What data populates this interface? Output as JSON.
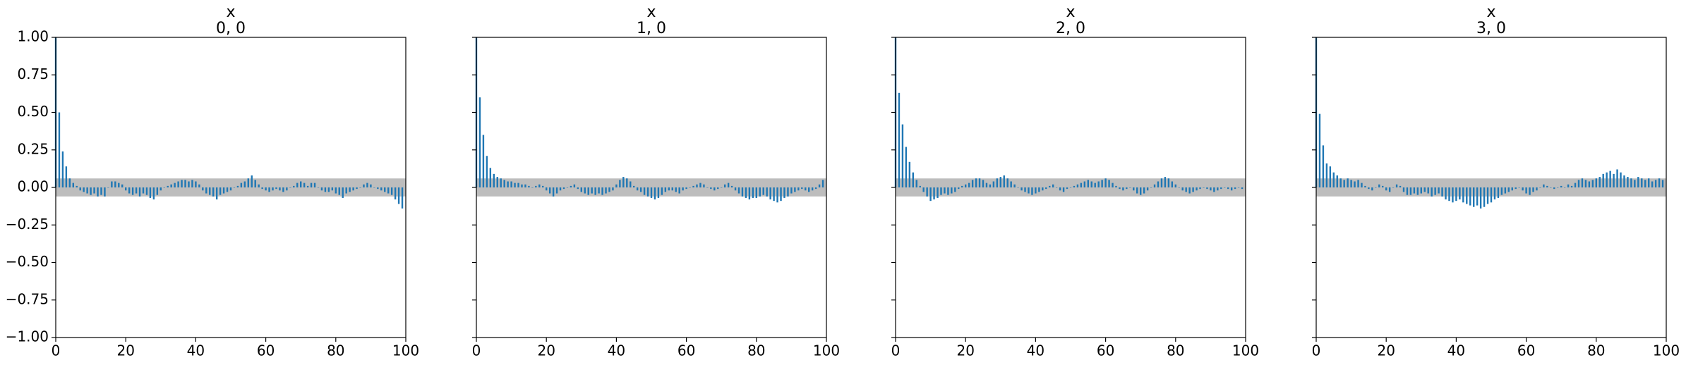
{
  "chart_data": [
    {
      "type": "bar",
      "title": "x",
      "subtitle": "0, 0",
      "color": "#1f77b4",
      "band": [
        -0.06,
        0.06
      ],
      "band_color": "#bdbdbd",
      "show_ytick_labels": true,
      "xlim": [
        0,
        100
      ],
      "xticks": [
        0,
        20,
        40,
        60,
        80,
        100
      ],
      "ylim": [
        -1,
        1
      ],
      "yticks": [
        {
          "value": -1,
          "label": "−1.00"
        },
        {
          "value": -0.75,
          "label": "−0.75"
        },
        {
          "value": -0.5,
          "label": "−0.50"
        },
        {
          "value": -0.25,
          "label": "−0.25"
        },
        {
          "value": 0,
          "label": "0.00"
        },
        {
          "value": 0.25,
          "label": "0.25"
        },
        {
          "value": 0.5,
          "label": "0.50"
        },
        {
          "value": 0.75,
          "label": "0.75"
        },
        {
          "value": 1,
          "label": "1.00"
        }
      ],
      "x": [
        0,
        1,
        2,
        3,
        4,
        5,
        6,
        7,
        8,
        9,
        10,
        11,
        12,
        13,
        14,
        15,
        16,
        17,
        18,
        19,
        20,
        21,
        22,
        23,
        24,
        25,
        26,
        27,
        28,
        29,
        30,
        31,
        32,
        33,
        34,
        35,
        36,
        37,
        38,
        39,
        40,
        41,
        42,
        43,
        44,
        45,
        46,
        47,
        48,
        49,
        50,
        51,
        52,
        53,
        54,
        55,
        56,
        57,
        58,
        59,
        60,
        61,
        62,
        63,
        64,
        65,
        66,
        67,
        68,
        69,
        70,
        71,
        72,
        73,
        74,
        75,
        76,
        77,
        78,
        79,
        80,
        81,
        82,
        83,
        84,
        85,
        86,
        87,
        88,
        89,
        90,
        91,
        92,
        93,
        94,
        95,
        96,
        97,
        98,
        99
      ],
      "values": [
        1,
        0.5,
        0.24,
        0.14,
        0.06,
        0.03,
        0.01,
        -0.02,
        -0.03,
        -0.04,
        -0.05,
        -0.04,
        -0.06,
        -0.05,
        -0.06,
        0.0,
        0.04,
        0.04,
        0.03,
        0.02,
        -0.02,
        -0.04,
        -0.05,
        -0.04,
        -0.06,
        -0.04,
        -0.05,
        -0.07,
        -0.08,
        -0.05,
        -0.02,
        0.0,
        0.01,
        0.02,
        0.03,
        0.04,
        0.05,
        0.05,
        0.04,
        0.05,
        0.04,
        0.02,
        -0.02,
        -0.04,
        -0.05,
        -0.06,
        -0.08,
        -0.05,
        -0.04,
        -0.03,
        -0.02,
        0.0,
        0.01,
        0.03,
        0.04,
        0.06,
        0.08,
        0.05,
        0.02,
        -0.01,
        -0.02,
        -0.03,
        -0.02,
        -0.01,
        -0.02,
        -0.03,
        -0.02,
        0.0,
        0.01,
        0.03,
        0.04,
        0.03,
        0.01,
        0.03,
        0.03,
        0.0,
        -0.02,
        -0.03,
        -0.03,
        -0.02,
        -0.04,
        -0.05,
        -0.07,
        -0.04,
        -0.03,
        -0.02,
        -0.01,
        0.0,
        0.02,
        0.03,
        0.02,
        0.0,
        -0.01,
        -0.02,
        -0.03,
        -0.04,
        -0.05,
        -0.08,
        -0.11,
        -0.14
      ]
    },
    {
      "type": "bar",
      "title": "x",
      "subtitle": "1, 0",
      "color": "#1f77b4",
      "band": [
        -0.06,
        0.06
      ],
      "band_color": "#bdbdbd",
      "show_ytick_labels": false,
      "xlim": [
        0,
        100
      ],
      "xticks": [
        0,
        20,
        40,
        60,
        80,
        100
      ],
      "ylim": [
        -1,
        1
      ],
      "yticks": [
        -1,
        -0.75,
        -0.5,
        -0.25,
        0,
        0.25,
        0.5,
        0.75,
        1
      ],
      "x": [
        0,
        1,
        2,
        3,
        4,
        5,
        6,
        7,
        8,
        9,
        10,
        11,
        12,
        13,
        14,
        15,
        16,
        17,
        18,
        19,
        20,
        21,
        22,
        23,
        24,
        25,
        26,
        27,
        28,
        29,
        30,
        31,
        32,
        33,
        34,
        35,
        36,
        37,
        38,
        39,
        40,
        41,
        42,
        43,
        44,
        45,
        46,
        47,
        48,
        49,
        50,
        51,
        52,
        53,
        54,
        55,
        56,
        57,
        58,
        59,
        60,
        61,
        62,
        63,
        64,
        65,
        66,
        67,
        68,
        69,
        70,
        71,
        72,
        73,
        74,
        75,
        76,
        77,
        78,
        79,
        80,
        81,
        82,
        83,
        84,
        85,
        86,
        87,
        88,
        89,
        90,
        91,
        92,
        93,
        94,
        95,
        96,
        97,
        98,
        99
      ],
      "values": [
        1,
        0.6,
        0.35,
        0.21,
        0.13,
        0.09,
        0.07,
        0.06,
        0.05,
        0.04,
        0.04,
        0.03,
        0.03,
        0.02,
        0.02,
        0.01,
        0.0,
        0.01,
        0.02,
        0.01,
        -0.02,
        -0.04,
        -0.06,
        -0.04,
        -0.02,
        -0.01,
        0.0,
        0.01,
        0.02,
        -0.01,
        -0.03,
        -0.04,
        -0.05,
        -0.04,
        -0.05,
        -0.04,
        -0.05,
        -0.04,
        -0.03,
        -0.02,
        0.02,
        0.05,
        0.07,
        0.06,
        0.04,
        0.01,
        -0.02,
        -0.03,
        -0.05,
        -0.06,
        -0.07,
        -0.08,
        -0.07,
        -0.05,
        -0.03,
        -0.02,
        -0.02,
        -0.03,
        -0.04,
        -0.02,
        -0.01,
        0.0,
        0.01,
        0.02,
        0.03,
        0.02,
        0.0,
        -0.01,
        -0.02,
        -0.01,
        0.0,
        0.02,
        0.03,
        0.01,
        -0.02,
        -0.04,
        -0.06,
        -0.07,
        -0.08,
        -0.07,
        -0.07,
        -0.06,
        -0.05,
        -0.06,
        -0.08,
        -0.09,
        -0.1,
        -0.09,
        -0.07,
        -0.06,
        -0.04,
        -0.03,
        -0.02,
        -0.01,
        -0.02,
        -0.03,
        -0.02,
        -0.01,
        0.02,
        0.05
      ]
    },
    {
      "type": "bar",
      "title": "x",
      "subtitle": "2, 0",
      "color": "#1f77b4",
      "band": [
        -0.06,
        0.06
      ],
      "band_color": "#bdbdbd",
      "show_ytick_labels": false,
      "xlim": [
        0,
        100
      ],
      "xticks": [
        0,
        20,
        40,
        60,
        80,
        100
      ],
      "ylim": [
        -1,
        1
      ],
      "yticks": [
        -1,
        -0.75,
        -0.5,
        -0.25,
        0,
        0.25,
        0.5,
        0.75,
        1
      ],
      "x": [
        0,
        1,
        2,
        3,
        4,
        5,
        6,
        7,
        8,
        9,
        10,
        11,
        12,
        13,
        14,
        15,
        16,
        17,
        18,
        19,
        20,
        21,
        22,
        23,
        24,
        25,
        26,
        27,
        28,
        29,
        30,
        31,
        32,
        33,
        34,
        35,
        36,
        37,
        38,
        39,
        40,
        41,
        42,
        43,
        44,
        45,
        46,
        47,
        48,
        49,
        50,
        51,
        52,
        53,
        54,
        55,
        56,
        57,
        58,
        59,
        60,
        61,
        62,
        63,
        64,
        65,
        66,
        67,
        68,
        69,
        70,
        71,
        72,
        73,
        74,
        75,
        76,
        77,
        78,
        79,
        80,
        81,
        82,
        83,
        84,
        85,
        86,
        87,
        88,
        89,
        90,
        91,
        92,
        93,
        94,
        95,
        96,
        97,
        98,
        99
      ],
      "values": [
        1,
        0.63,
        0.42,
        0.27,
        0.17,
        0.1,
        0.05,
        0.01,
        -0.03,
        -0.06,
        -0.09,
        -0.08,
        -0.07,
        -0.05,
        -0.04,
        -0.05,
        -0.04,
        -0.03,
        -0.01,
        0.01,
        0.02,
        0.03,
        0.05,
        0.06,
        0.06,
        0.05,
        0.03,
        0.02,
        0.04,
        0.06,
        0.07,
        0.08,
        0.06,
        0.04,
        0.02,
        0.0,
        -0.02,
        -0.03,
        -0.04,
        -0.05,
        -0.04,
        -0.03,
        -0.02,
        -0.01,
        0.01,
        0.02,
        0.0,
        -0.02,
        -0.03,
        -0.01,
        0.0,
        0.01,
        0.02,
        0.03,
        0.04,
        0.05,
        0.04,
        0.03,
        0.04,
        0.05,
        0.06,
        0.05,
        0.03,
        0.01,
        -0.01,
        -0.02,
        -0.01,
        0.0,
        -0.02,
        -0.04,
        -0.05,
        -0.04,
        -0.02,
        0.0,
        0.02,
        0.04,
        0.06,
        0.07,
        0.06,
        0.04,
        0.02,
        0.0,
        -0.02,
        -0.03,
        -0.04,
        -0.03,
        -0.02,
        -0.01,
        0.0,
        -0.01,
        -0.02,
        -0.03,
        -0.02,
        -0.01,
        0.0,
        -0.01,
        -0.02,
        -0.01,
        0.0,
        -0.01
      ]
    },
    {
      "type": "bar",
      "title": "x",
      "subtitle": "3, 0",
      "color": "#1f77b4",
      "band": [
        -0.06,
        0.06
      ],
      "band_color": "#bdbdbd",
      "show_ytick_labels": false,
      "xlim": [
        0,
        100
      ],
      "xticks": [
        0,
        20,
        40,
        60,
        80,
        100
      ],
      "ylim": [
        -1,
        1
      ],
      "yticks": [
        -1,
        -0.75,
        -0.5,
        -0.25,
        0,
        0.25,
        0.5,
        0.75,
        1
      ],
      "x": [
        0,
        1,
        2,
        3,
        4,
        5,
        6,
        7,
        8,
        9,
        10,
        11,
        12,
        13,
        14,
        15,
        16,
        17,
        18,
        19,
        20,
        21,
        22,
        23,
        24,
        25,
        26,
        27,
        28,
        29,
        30,
        31,
        32,
        33,
        34,
        35,
        36,
        37,
        38,
        39,
        40,
        41,
        42,
        43,
        44,
        45,
        46,
        47,
        48,
        49,
        50,
        51,
        52,
        53,
        54,
        55,
        56,
        57,
        58,
        59,
        60,
        61,
        62,
        63,
        64,
        65,
        66,
        67,
        68,
        69,
        70,
        71,
        72,
        73,
        74,
        75,
        76,
        77,
        78,
        79,
        80,
        81,
        82,
        83,
        84,
        85,
        86,
        87,
        88,
        89,
        90,
        91,
        92,
        93,
        94,
        95,
        96,
        97,
        98,
        99
      ],
      "values": [
        1,
        0.49,
        0.28,
        0.16,
        0.14,
        0.1,
        0.08,
        0.06,
        0.05,
        0.06,
        0.05,
        0.04,
        0.05,
        0.03,
        0.01,
        -0.01,
        -0.02,
        0.0,
        0.02,
        0.01,
        -0.02,
        -0.03,
        0.0,
        0.02,
        0.01,
        -0.03,
        -0.05,
        -0.05,
        -0.04,
        -0.05,
        -0.04,
        -0.03,
        -0.04,
        -0.06,
        -0.05,
        -0.04,
        -0.06,
        -0.08,
        -0.09,
        -0.1,
        -0.09,
        -0.08,
        -0.1,
        -0.11,
        -0.12,
        -0.13,
        -0.12,
        -0.14,
        -0.13,
        -0.11,
        -0.1,
        -0.08,
        -0.07,
        -0.05,
        -0.04,
        -0.03,
        -0.02,
        -0.01,
        0.0,
        -0.02,
        -0.04,
        -0.05,
        -0.03,
        -0.02,
        0.0,
        0.02,
        0.01,
        0.0,
        -0.01,
        0.0,
        0.01,
        0.0,
        0.02,
        0.01,
        0.03,
        0.05,
        0.06,
        0.05,
        0.04,
        0.05,
        0.06,
        0.07,
        0.09,
        0.1,
        0.11,
        0.09,
        0.12,
        0.1,
        0.08,
        0.07,
        0.06,
        0.05,
        0.07,
        0.06,
        0.05,
        0.06,
        0.04,
        0.05,
        0.06,
        0.05
      ]
    }
  ]
}
